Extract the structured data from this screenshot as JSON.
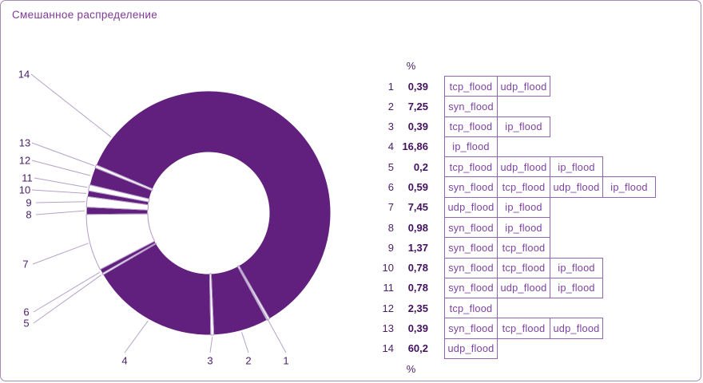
{
  "title": "Смешанное распределение",
  "unit_header": "%",
  "unit_footer": "%",
  "colors": {
    "accent_fill": "#611f7e",
    "card_border": "#a58abb",
    "cell_border": "#9266ae",
    "cell_text": "#7d43a0",
    "number_text": "#4a2168",
    "value_text": "#42105e",
    "leader_line": "#b5a2c8",
    "slice_outline": "#b49ac9",
    "title_text": "#7e3a96",
    "background": "#ffffff"
  },
  "chart_data": {
    "type": "pie",
    "subtype": "donut",
    "title": "Смешанное распределение",
    "unit": "%",
    "direction": "clockwise",
    "start_angle_screen_deg": 60,
    "inner_outer_ratio": 0.5,
    "legend_position": "right-table",
    "slices": [
      {
        "n": 1,
        "pct": 0.39,
        "pct_label": "0,39",
        "attack_types": [
          "tcp_flood",
          "udp_flood"
        ],
        "filled": false
      },
      {
        "n": 2,
        "pct": 7.25,
        "pct_label": "7,25",
        "attack_types": [
          "syn_flood"
        ],
        "filled": true
      },
      {
        "n": 3,
        "pct": 0.39,
        "pct_label": "0,39",
        "attack_types": [
          "tcp_flood",
          "ip_flood"
        ],
        "filled": false
      },
      {
        "n": 4,
        "pct": 16.86,
        "pct_label": "16,86",
        "attack_types": [
          "ip_flood"
        ],
        "filled": true
      },
      {
        "n": 5,
        "pct": 0.2,
        "pct_label": "0,2",
        "attack_types": [
          "tcp_flood",
          "udp_flood",
          "ip_flood"
        ],
        "filled": false
      },
      {
        "n": 6,
        "pct": 0.59,
        "pct_label": "0,59",
        "attack_types": [
          "syn_flood",
          "tcp_flood",
          "udp_flood",
          "ip_flood"
        ],
        "filled": true
      },
      {
        "n": 7,
        "pct": 7.45,
        "pct_label": "7,45",
        "attack_types": [
          "udp_flood",
          "ip_flood"
        ],
        "filled": false
      },
      {
        "n": 8,
        "pct": 0.98,
        "pct_label": "0,98",
        "attack_types": [
          "syn_flood",
          "ip_flood"
        ],
        "filled": true
      },
      {
        "n": 9,
        "pct": 1.37,
        "pct_label": "1,37",
        "attack_types": [
          "syn_flood",
          "tcp_flood"
        ],
        "filled": false
      },
      {
        "n": 10,
        "pct": 0.78,
        "pct_label": "0,78",
        "attack_types": [
          "syn_flood",
          "tcp_flood",
          "ip_flood"
        ],
        "filled": true
      },
      {
        "n": 11,
        "pct": 0.78,
        "pct_label": "0,78",
        "attack_types": [
          "syn_flood",
          "udp_flood",
          "ip_flood"
        ],
        "filled": false
      },
      {
        "n": 12,
        "pct": 2.35,
        "pct_label": "2,35",
        "attack_types": [
          "tcp_flood"
        ],
        "filled": true
      },
      {
        "n": 13,
        "pct": 0.39,
        "pct_label": "0,39",
        "attack_types": [
          "syn_flood",
          "tcp_flood",
          "udp_flood"
        ],
        "filled": false
      },
      {
        "n": 14,
        "pct": 60.2,
        "pct_label": "60,2",
        "attack_types": [
          "udp_flood"
        ],
        "filled": true
      }
    ]
  }
}
